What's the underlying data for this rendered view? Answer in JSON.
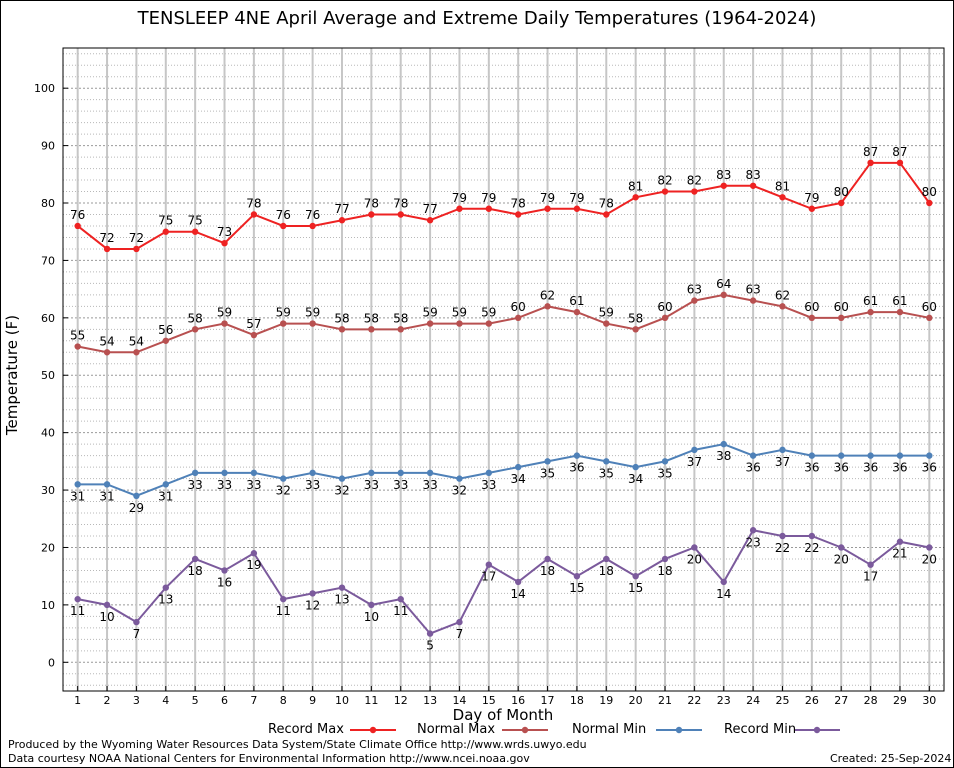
{
  "title": "TENSLEEP 4NE April Average and Extreme Daily Temperatures (1964-2024)",
  "footer": {
    "produced_by": "Produced by the Wyoming Water Resources Data System/State Climate Office http://www.wrds.uwyo.edu",
    "courtesy": "Data courtesy NOAA National Centers for Environmental Information http://www.ncei.noaa.gov",
    "created": "Created:  25-Sep-2024"
  },
  "chart_data": {
    "type": "line",
    "title": "TENSLEEP 4NE April Average and Extreme Daily Temperatures (1964-2024)",
    "xlabel": "Day of Month",
    "ylabel": "Temperature (F)",
    "xlim": [
      0.5,
      30.5
    ],
    "ylim": [
      -5,
      107
    ],
    "yticks": [
      0,
      10,
      20,
      30,
      40,
      50,
      60,
      70,
      80,
      90,
      100
    ],
    "x": [
      1,
      2,
      3,
      4,
      5,
      6,
      7,
      8,
      9,
      10,
      11,
      12,
      13,
      14,
      15,
      16,
      17,
      18,
      19,
      20,
      21,
      22,
      23,
      24,
      25,
      26,
      27,
      28,
      29,
      30
    ],
    "grid": true,
    "legend_position": "bottom",
    "series": [
      {
        "name": "Record Max",
        "color": "#ee2222",
        "label_pos": "above",
        "values": [
          76,
          72,
          72,
          75,
          75,
          73,
          78,
          76,
          76,
          77,
          78,
          78,
          77,
          79,
          79,
          78,
          79,
          79,
          78,
          81,
          82,
          82,
          83,
          83,
          81,
          79,
          80,
          87,
          87,
          80
        ]
      },
      {
        "name": "Normal Max",
        "color": "#b85050",
        "label_pos": "above",
        "values": [
          55,
          54,
          54,
          56,
          58,
          59,
          57,
          59,
          59,
          58,
          58,
          58,
          59,
          59,
          59,
          60,
          62,
          61,
          59,
          58,
          60,
          63,
          64,
          63,
          62,
          60,
          60,
          61,
          61,
          60
        ]
      },
      {
        "name": "Normal Min",
        "color": "#4f81b8",
        "label_pos": "below",
        "values": [
          31,
          31,
          29,
          31,
          33,
          33,
          33,
          32,
          33,
          32,
          33,
          33,
          33,
          32,
          33,
          34,
          35,
          36,
          35,
          34,
          35,
          37,
          38,
          36,
          37,
          36,
          36,
          36,
          36,
          36
        ]
      },
      {
        "name": "Record Min",
        "color": "#7b5a9c",
        "label_pos": "below",
        "values": [
          11,
          10,
          7,
          13,
          18,
          16,
          19,
          11,
          12,
          13,
          10,
          11,
          5,
          7,
          17,
          14,
          18,
          15,
          18,
          15,
          18,
          20,
          14,
          23,
          22,
          22,
          20,
          17,
          21,
          20
        ]
      }
    ]
  }
}
